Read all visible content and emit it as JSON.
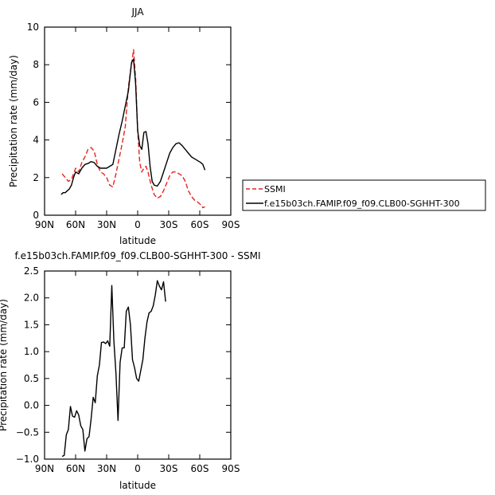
{
  "chart_data": [
    {
      "type": "line",
      "title": "JJA",
      "xlabel": "latitude",
      "ylabel": "Precipitation rate (mm/day)",
      "xlim": [
        90,
        -90
      ],
      "ylim": [
        0,
        10
      ],
      "x_ticks": [
        90,
        60,
        30,
        0,
        -30,
        -60,
        -90
      ],
      "x_tick_labels": [
        "90N",
        "60N",
        "30N",
        "0",
        "30S",
        "60S",
        "90S"
      ],
      "y_ticks": [
        0,
        2,
        4,
        6,
        8,
        10
      ],
      "y_tick_labels": [
        "0",
        "2",
        "4",
        "6",
        "8",
        "10"
      ],
      "legend_position": "right",
      "series": [
        {
          "name": "SSMI",
          "color": "#e8231c",
          "dash": "dashed",
          "points": [
            [
              73,
              2.2
            ],
            [
              70,
              2.0
            ],
            [
              67,
              1.8
            ],
            [
              64,
              1.9
            ],
            [
              62,
              2.2
            ],
            [
              60,
              2.5
            ],
            [
              57,
              2.3
            ],
            [
              54,
              2.8
            ],
            [
              51,
              3.1
            ],
            [
              48,
              3.5
            ],
            [
              45,
              3.6
            ],
            [
              42,
              3.4
            ],
            [
              39,
              2.7
            ],
            [
              36,
              2.3
            ],
            [
              33,
              2.2
            ],
            [
              30,
              2.0
            ],
            [
              27,
              1.6
            ],
            [
              24,
              1.5
            ],
            [
              21,
              2.2
            ],
            [
              18,
              3.0
            ],
            [
              15,
              3.8
            ],
            [
              12,
              4.7
            ],
            [
              9,
              6.8
            ],
            [
              6,
              8.0
            ],
            [
              4,
              8.8
            ],
            [
              2,
              7.3
            ],
            [
              0,
              4.5
            ],
            [
              -2,
              2.8
            ],
            [
              -4,
              2.3
            ],
            [
              -6,
              2.5
            ],
            [
              -8,
              2.6
            ],
            [
              -10,
              2.3
            ],
            [
              -13,
              1.6
            ],
            [
              -16,
              1.1
            ],
            [
              -19,
              0.9
            ],
            [
              -22,
              1.0
            ],
            [
              -25,
              1.3
            ],
            [
              -28,
              1.7
            ],
            [
              -31,
              2.1
            ],
            [
              -34,
              2.3
            ],
            [
              -37,
              2.3
            ],
            [
              -40,
              2.2
            ],
            [
              -43,
              2.1
            ],
            [
              -46,
              1.8
            ],
            [
              -49,
              1.3
            ],
            [
              -52,
              1.0
            ],
            [
              -55,
              0.8
            ],
            [
              -58,
              0.7
            ],
            [
              -61,
              0.55
            ],
            [
              -63,
              0.4
            ],
            [
              -65,
              0.45
            ]
          ]
        },
        {
          "name": "f.e15b03ch.FAMIP.f09_f09.CLB00-SGHHT-300",
          "color": "#000000",
          "dash": "solid",
          "points": [
            [
              74,
              1.1
            ],
            [
              72,
              1.2
            ],
            [
              70,
              1.2
            ],
            [
              68,
              1.3
            ],
            [
              66,
              1.4
            ],
            [
              64,
              1.6
            ],
            [
              62,
              2.0
            ],
            [
              60,
              2.3
            ],
            [
              57,
              2.2
            ],
            [
              54,
              2.5
            ],
            [
              51,
              2.7
            ],
            [
              48,
              2.75
            ],
            [
              45,
              2.85
            ],
            [
              42,
              2.8
            ],
            [
              39,
              2.6
            ],
            [
              36,
              2.5
            ],
            [
              33,
              2.5
            ],
            [
              30,
              2.5
            ],
            [
              27,
              2.6
            ],
            [
              24,
              2.7
            ],
            [
              21,
              3.5
            ],
            [
              18,
              4.3
            ],
            [
              15,
              5.0
            ],
            [
              12,
              5.8
            ],
            [
              9,
              6.6
            ],
            [
              6,
              8.1
            ],
            [
              4,
              8.3
            ],
            [
              2,
              7.0
            ],
            [
              0,
              4.5
            ],
            [
              -2,
              3.7
            ],
            [
              -4,
              3.5
            ],
            [
              -6,
              4.4
            ],
            [
              -8,
              4.45
            ],
            [
              -10,
              3.8
            ],
            [
              -12,
              2.6
            ],
            [
              -14,
              1.8
            ],
            [
              -16,
              1.6
            ],
            [
              -19,
              1.55
            ],
            [
              -22,
              1.8
            ],
            [
              -25,
              2.3
            ],
            [
              -28,
              2.8
            ],
            [
              -31,
              3.3
            ],
            [
              -34,
              3.6
            ],
            [
              -37,
              3.8
            ],
            [
              -40,
              3.85
            ],
            [
              -43,
              3.7
            ],
            [
              -46,
              3.5
            ],
            [
              -49,
              3.3
            ],
            [
              -52,
              3.1
            ],
            [
              -55,
              3.0
            ],
            [
              -58,
              2.9
            ],
            [
              -61,
              2.8
            ],
            [
              -63,
              2.7
            ],
            [
              -65,
              2.4
            ]
          ]
        }
      ]
    },
    {
      "type": "line",
      "title": "f.e15b03ch.FAMIP.f09_f09.CLB00-SGHHT-300 - SSMI",
      "xlabel": "latitude",
      "ylabel": "Precipitation rate (mm/day)",
      "xlim": [
        90,
        -90
      ],
      "ylim": [
        -1.0,
        2.5
      ],
      "x_ticks": [
        90,
        60,
        30,
        0,
        -30,
        -60,
        -90
      ],
      "x_tick_labels": [
        "90N",
        "60N",
        "30N",
        "0",
        "30S",
        "60S",
        "90S"
      ],
      "y_ticks": [
        -1.0,
        -0.5,
        0.0,
        0.5,
        1.0,
        1.5,
        2.0,
        2.5
      ],
      "y_tick_labels": [
        "−1.0",
        "−0.5",
        "0.0",
        "0.5",
        "1.0",
        "1.5",
        "2.0",
        "2.5"
      ],
      "series": [
        {
          "color": "#000000",
          "dash": "solid",
          "points": [
            [
              73,
              -0.95
            ],
            [
              71,
              -0.93
            ],
            [
              69,
              -0.55
            ],
            [
              67,
              -0.45
            ],
            [
              65,
              -0.02
            ],
            [
              63,
              -0.2
            ],
            [
              61,
              -0.22
            ],
            [
              59,
              -0.1
            ],
            [
              57,
              -0.18
            ],
            [
              55,
              -0.38
            ],
            [
              53,
              -0.45
            ],
            [
              51,
              -0.85
            ],
            [
              49,
              -0.62
            ],
            [
              47,
              -0.58
            ],
            [
              45,
              -0.25
            ],
            [
              43,
              0.15
            ],
            [
              41,
              0.05
            ],
            [
              39,
              0.55
            ],
            [
              37,
              0.75
            ],
            [
              35,
              1.17
            ],
            [
              33,
              1.18
            ],
            [
              31,
              1.15
            ],
            [
              29,
              1.2
            ],
            [
              27,
              1.1
            ],
            [
              25,
              2.23
            ],
            [
              23,
              1.2
            ],
            [
              21,
              0.6
            ],
            [
              19,
              -0.28
            ],
            [
              17,
              0.8
            ],
            [
              15,
              1.07
            ],
            [
              13,
              1.07
            ],
            [
              11,
              1.75
            ],
            [
              9,
              1.83
            ],
            [
              7,
              1.5
            ],
            [
              5,
              0.85
            ],
            [
              3,
              0.7
            ],
            [
              1,
              0.5
            ],
            [
              -1,
              0.45
            ],
            [
              -3,
              0.65
            ],
            [
              -5,
              0.85
            ],
            [
              -7,
              1.25
            ],
            [
              -9,
              1.55
            ],
            [
              -11,
              1.72
            ],
            [
              -13,
              1.75
            ],
            [
              -15,
              1.85
            ],
            [
              -17,
              2.05
            ],
            [
              -19,
              2.32
            ],
            [
              -21,
              2.22
            ],
            [
              -23,
              2.15
            ],
            [
              -25,
              2.3
            ],
            [
              -27,
              1.93
            ]
          ]
        }
      ]
    }
  ]
}
